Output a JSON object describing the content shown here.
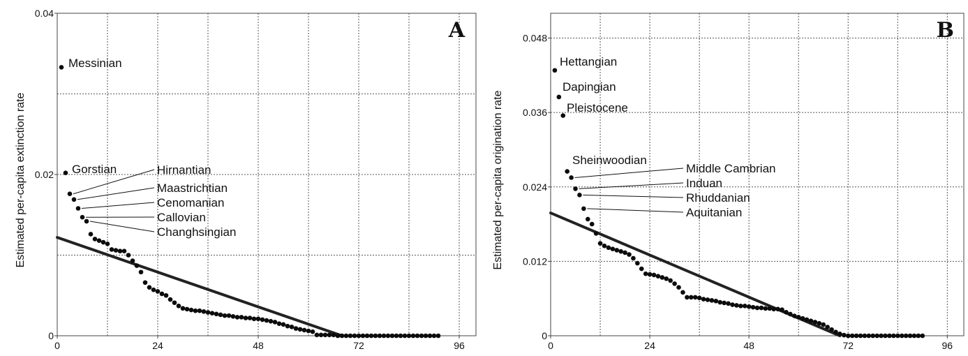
{
  "chart_data": [
    {
      "type": "scatter",
      "panel": "A",
      "title": "",
      "xlabel": "",
      "ylabel": "Estimated per-capita extinction rate",
      "xlim": [
        0,
        100
      ],
      "ylim": [
        0,
        0.04
      ],
      "x_ticks": [
        "0",
        "24",
        "48",
        "72",
        "96"
      ],
      "y_ticks": [
        "0",
        "0.02",
        "0.04"
      ],
      "x_tick_values": [
        0,
        24,
        48,
        72,
        96
      ],
      "y_tick_values": [
        0,
        0.02,
        0.04
      ],
      "vgrid": [
        12,
        24,
        36,
        48,
        60,
        72,
        84,
        96
      ],
      "hgrid": [
        0.01,
        0.02,
        0.03
      ],
      "grid": true,
      "series": [
        {
          "values": [
            0.0333,
            0.0202,
            0.0176,
            0.0169,
            0.0158,
            0.0147,
            0.0142,
            0.0126,
            0.012,
            0.0118,
            0.0116,
            0.0114,
            0.0107,
            0.0106,
            0.0105,
            0.0105,
            0.01,
            0.0093,
            0.0087,
            0.0079,
            0.0066,
            0.006,
            0.0057,
            0.0055,
            0.0052,
            0.005,
            0.0045,
            0.0041,
            0.0037,
            0.0034,
            0.0033,
            0.0032,
            0.0031,
            0.0031,
            0.003,
            0.0029,
            0.0028,
            0.0027,
            0.0026,
            0.0025,
            0.0025,
            0.0024,
            0.0023,
            0.0023,
            0.0022,
            0.0022,
            0.0021,
            0.0021,
            0.002,
            0.0019,
            0.0018,
            0.0017,
            0.0015,
            0.0014,
            0.0012,
            0.0011,
            0.0009,
            0.0008,
            0.0007,
            0.0006,
            0.0005,
            0.0001,
            0.0001,
            0.0001,
            0.0001,
            0.0001,
            0,
            0,
            0,
            0,
            0,
            0,
            0,
            0,
            0,
            0,
            0,
            0,
            0,
            0,
            0,
            0,
            0,
            0,
            0,
            0,
            0,
            0,
            0,
            0,
            0
          ]
        }
      ],
      "trend_line": {
        "x": [
          0,
          68
        ],
        "y": [
          0.0122,
          0
        ]
      },
      "annotations": [
        {
          "text": "Messinian",
          "point_index": 0,
          "style": "inline"
        },
        {
          "text": "Gorstian",
          "point_index": 1,
          "style": "inline"
        },
        {
          "text": "Hirnantian",
          "point_index": 2,
          "style": "leader"
        },
        {
          "text": "Maastrichtian",
          "point_index": 3,
          "style": "leader"
        },
        {
          "text": "Cenomanian",
          "point_index": 4,
          "style": "leader"
        },
        {
          "text": "Callovian",
          "point_index": 5,
          "style": "leader"
        },
        {
          "text": "Changhsingian",
          "point_index": 6,
          "style": "leader"
        }
      ]
    },
    {
      "type": "scatter",
      "panel": "B",
      "title": "",
      "xlabel": "",
      "ylabel": "Estimated per-capita origination rate",
      "xlim": [
        0,
        100
      ],
      "ylim": [
        0,
        0.052
      ],
      "x_ticks": [
        "0",
        "24",
        "48",
        "72",
        "96"
      ],
      "y_ticks": [
        "0",
        "0.012",
        "0.024",
        "0.036",
        "0.048"
      ],
      "x_tick_values": [
        0,
        24,
        48,
        72,
        96
      ],
      "y_tick_values": [
        0,
        0.012,
        0.024,
        0.036,
        0.048
      ],
      "vgrid": [
        12,
        24,
        36,
        48,
        60,
        72,
        84,
        96
      ],
      "hgrid": [
        0.012,
        0.024,
        0.036,
        0.048
      ],
      "grid": true,
      "series": [
        {
          "values": [
            0.0428,
            0.0385,
            0.0355,
            0.0265,
            0.0255,
            0.0237,
            0.0227,
            0.0205,
            0.0188,
            0.018,
            0.0165,
            0.0149,
            0.0145,
            0.0142,
            0.014,
            0.0138,
            0.0136,
            0.0134,
            0.0131,
            0.0125,
            0.0117,
            0.0108,
            0.01,
            0.0099,
            0.0098,
            0.0096,
            0.0094,
            0.0092,
            0.0089,
            0.0084,
            0.0078,
            0.007,
            0.0062,
            0.0062,
            0.0062,
            0.0061,
            0.0059,
            0.0058,
            0.0057,
            0.0056,
            0.0054,
            0.0053,
            0.0052,
            0.005,
            0.0049,
            0.0048,
            0.0048,
            0.0047,
            0.0046,
            0.0045,
            0.0045,
            0.0044,
            0.0044,
            0.0043,
            0.0043,
            0.0042,
            0.0038,
            0.0035,
            0.0032,
            0.003,
            0.0028,
            0.0026,
            0.0024,
            0.0022,
            0.002,
            0.0018,
            0.0014,
            0.001,
            0.0006,
            0.0003,
            0.0001,
            0,
            0,
            0,
            0,
            0,
            0,
            0,
            0,
            0,
            0,
            0,
            0,
            0,
            0,
            0,
            0,
            0,
            0,
            0
          ]
        }
      ],
      "trend_line": {
        "x": [
          0,
          70
        ],
        "y": [
          0.0198,
          0
        ]
      },
      "annotations": [
        {
          "text": "Hettangian",
          "point_index": 0,
          "style": "inline"
        },
        {
          "text": "Dapingian",
          "point_index": 1,
          "style": "inline"
        },
        {
          "text": "Pleistocene",
          "point_index": 2,
          "style": "inline"
        },
        {
          "text": "Sheinwoodian",
          "point_index": 3,
          "style": "inline"
        },
        {
          "text": "Middle Cambrian",
          "point_index": 4,
          "style": "leader"
        },
        {
          "text": "Induan",
          "point_index": 5,
          "style": "leader"
        },
        {
          "text": "Rhuddanian",
          "point_index": 6,
          "style": "leader"
        },
        {
          "text": "Aquitanian",
          "point_index": 7,
          "style": "leader"
        }
      ]
    }
  ]
}
